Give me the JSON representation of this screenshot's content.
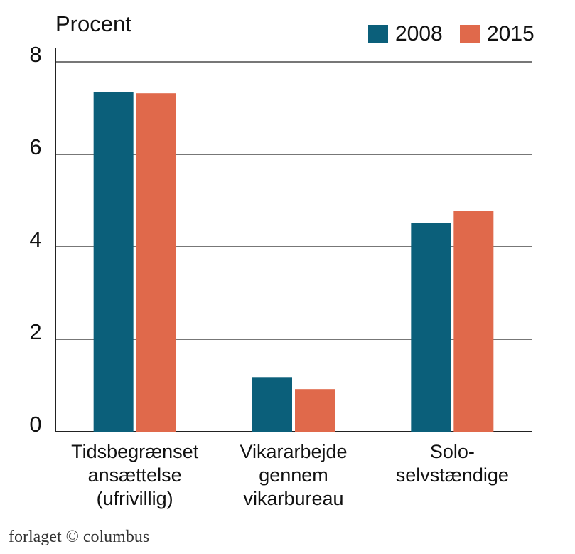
{
  "chart_data": {
    "type": "bar",
    "y_label": "Procent",
    "categories": [
      "Tidsbegrænset\nansættelse\n(ufrivillig)",
      "Vikararbejde\ngennem\nvikarbureau",
      "Solo-\nselvstændige"
    ],
    "series": [
      {
        "name": "2008",
        "color": "#0b5f7a",
        "values": [
          7.35,
          1.18,
          4.51
        ]
      },
      {
        "name": "2015",
        "color": "#e0694b",
        "values": [
          7.32,
          0.92,
          4.77
        ]
      }
    ],
    "ylim": [
      0,
      8
    ],
    "yticks": [
      0,
      2,
      4,
      6,
      8
    ],
    "grid": true,
    "legend": "top-right"
  },
  "footer": "forlaget © columbus"
}
